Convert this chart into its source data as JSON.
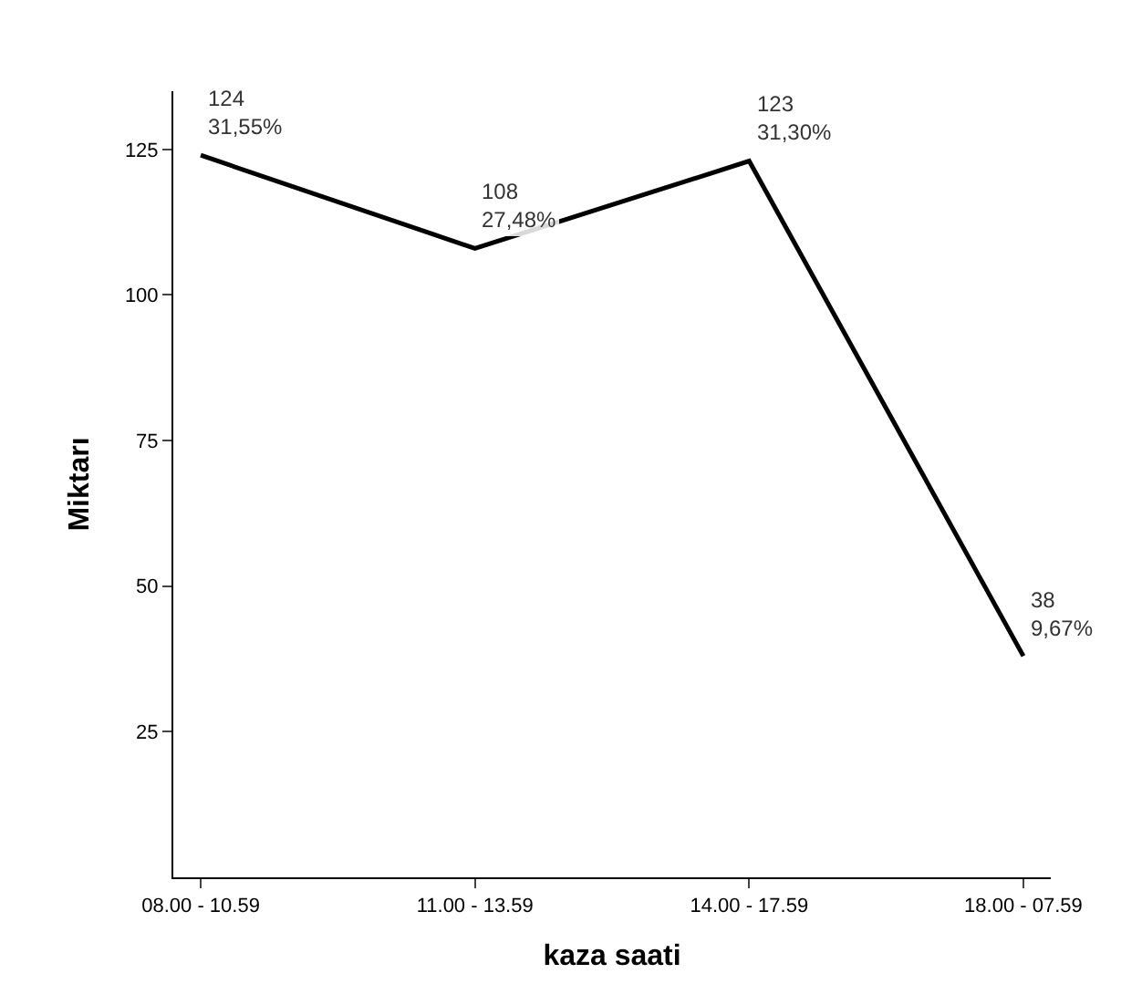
{
  "chart_data": {
    "type": "line",
    "xlabel": "kaza saati",
    "ylabel": "Miktarı",
    "categories": [
      "08.00 - 10.59",
      "11.00 - 13.59",
      "14.00 - 17.59",
      "18.00 - 07.59"
    ],
    "values": [
      124,
      108,
      123,
      38
    ],
    "value_labels": [
      "124\n31,55%",
      "108\n27,48%",
      "123\n31,30%",
      "38\n9,67%"
    ],
    "color": "#000000",
    "ylim": [
      0,
      135
    ],
    "yticks": [
      25,
      50,
      75,
      100,
      125
    ],
    "marker": "none",
    "line_style": "solid"
  }
}
